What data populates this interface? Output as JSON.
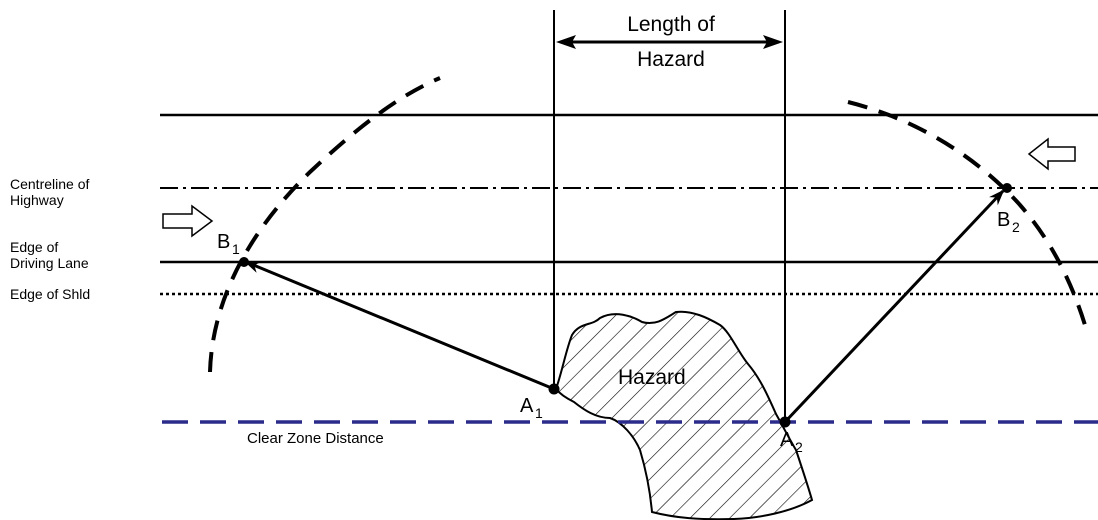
{
  "labels": {
    "length_line1": "Length of",
    "length_line2": "Hazard",
    "centreline_line1": "Centreline of",
    "centreline_line2": "Highway",
    "edge_lane_line1": "Edge of",
    "edge_lane_line2": "Driving Lane",
    "edge_shld": "Edge of Shld",
    "hazard": "Hazard",
    "clear_zone": "Clear Zone Distance"
  },
  "points": {
    "a1": {
      "letter": "A",
      "sub": "1"
    },
    "a2": {
      "letter": "A",
      "sub": "2"
    },
    "b1": {
      "letter": "B",
      "sub": "1"
    },
    "b2": {
      "letter": "B",
      "sub": "2"
    }
  },
  "colors": {
    "ink": "#000000",
    "clear_zone_line": "#2b2b8c"
  }
}
